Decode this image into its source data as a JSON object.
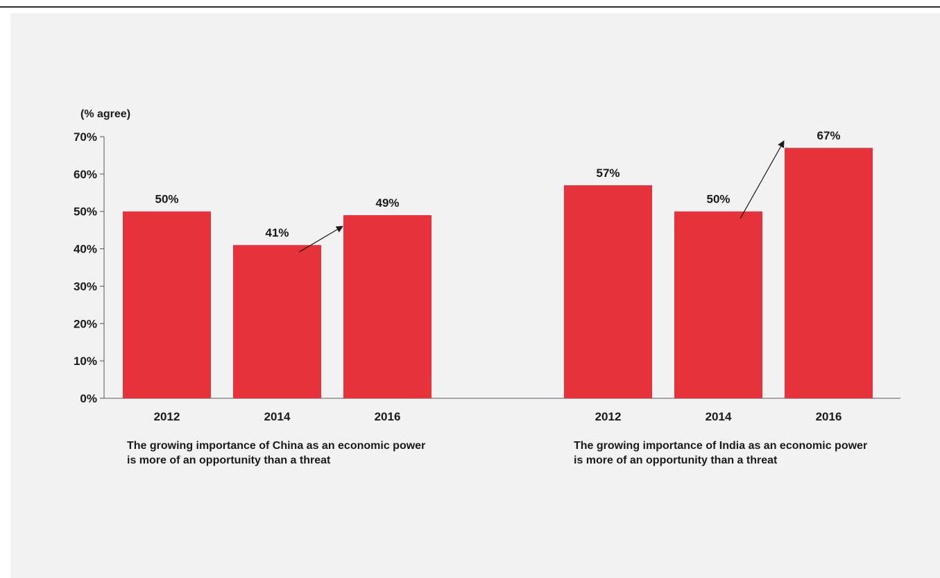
{
  "chart_data": {
    "type": "bar",
    "ylabel": "(% agree)",
    "ylim": [
      0,
      70
    ],
    "yticks": [
      "0%",
      "10%",
      "20%",
      "30%",
      "40%",
      "50%",
      "60%",
      "70%"
    ],
    "grid": false,
    "bar_color": "#e5323b",
    "groups": [
      {
        "categories": [
          "2012",
          "2014",
          "2016"
        ],
        "values": [
          50,
          41,
          49
        ],
        "labels": [
          "50%",
          "41%",
          "49%"
        ],
        "caption": "The growing importance of China as an economic power is more of an opportunity than a threat",
        "annotation": "arrow from 2014 to 2016"
      },
      {
        "categories": [
          "2012",
          "2014",
          "2016"
        ],
        "values": [
          57,
          50,
          67
        ],
        "labels": [
          "57%",
          "50%",
          "67%"
        ],
        "caption": "The growing importance of India as an economic power is more of an opportunity than a threat",
        "annotation": "arrow from 2014 to 2016"
      }
    ]
  }
}
